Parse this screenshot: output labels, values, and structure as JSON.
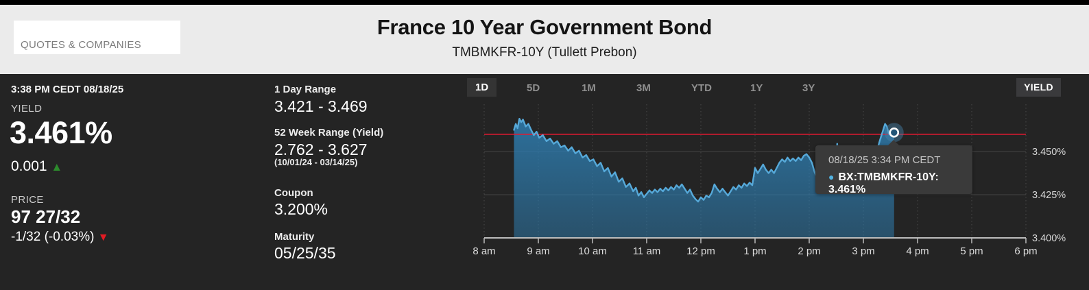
{
  "top_nav": {
    "menu_label": "QUOTES & COMPANIES"
  },
  "header": {
    "title": "France 10 Year Government Bond",
    "subtitle": "TMBMKFR-10Y  (Tullett Prebon)"
  },
  "quote": {
    "timestamp": "3:38 PM CEDT 08/18/25",
    "yield_label": "YIELD",
    "yield_value": "3.461%",
    "yield_change": "0.001",
    "up_arrow_icon": "▲",
    "price_label": "PRICE",
    "price_value": "97 27/32",
    "price_change": "-1/32  (-0.03%)",
    "down_arrow_icon": "▼"
  },
  "stats": [
    {
      "label": "1 Day Range",
      "value": "3.421 - 3.469"
    },
    {
      "label": "52 Week Range (Yield)",
      "value": "2.762 - 3.627",
      "note": "(10/01/24 - 03/14/25)"
    },
    {
      "label": "Coupon",
      "value": "3.200%"
    },
    {
      "label": "Maturity",
      "value": "05/25/35"
    }
  ],
  "chart": {
    "range_tabs": [
      "1D",
      "5D",
      "1M",
      "3M",
      "YTD",
      "1Y",
      "3Y"
    ],
    "active_tab": "1D",
    "mode_button": "YIELD",
    "tooltip": {
      "line1": "08/18/25 3:34 PM CEDT",
      "line2": "BX:TMBMKFR-10Y: 3.461%",
      "bullet": "●"
    }
  },
  "chart_data": {
    "type": "area",
    "title": "France 10 Year Government Bond intraday yield (1D)",
    "series_name": "BX:TMBMKFR-10Y",
    "x_unit": "minutes_since_midnight",
    "xlim": [
      480,
      1080
    ],
    "ylim": [
      3.4,
      3.4774
    ],
    "grid": true,
    "x_ticks": [
      {
        "t": 480,
        "label": "8 am"
      },
      {
        "t": 540,
        "label": "9 am"
      },
      {
        "t": 600,
        "label": "10 am"
      },
      {
        "t": 660,
        "label": "11 am"
      },
      {
        "t": 720,
        "label": "12 pm"
      },
      {
        "t": 780,
        "label": "1 pm"
      },
      {
        "t": 840,
        "label": "2 pm"
      },
      {
        "t": 900,
        "label": "3 pm"
      },
      {
        "t": 960,
        "label": "4 pm"
      },
      {
        "t": 1020,
        "label": "5 pm"
      },
      {
        "t": 1080,
        "label": "6 pm"
      }
    ],
    "y_ticks": [
      {
        "v": 3.45,
        "label": "3.450%"
      },
      {
        "v": 3.425,
        "label": "3.425%"
      },
      {
        "v": 3.4,
        "label": "3.400%"
      }
    ],
    "previous_close": 3.46,
    "day_high": 3.469,
    "day_low": 3.421,
    "last_point": {
      "t": 934,
      "v": 3.461,
      "label": "08/18/25 3:34 PM CEDT"
    },
    "colors": {
      "line": "#56a9d9",
      "fill_top": "rgba(46,125,176,0.85)",
      "fill_bottom": "rgba(46,125,176,0.50)",
      "prev_close_line": "#e11931",
      "grid": "#454545",
      "axis": "#bdbdbd"
    },
    "series": [
      [
        513,
        3.4625
      ],
      [
        515,
        3.466
      ],
      [
        517,
        3.4635
      ],
      [
        519,
        3.469
      ],
      [
        521,
        3.467
      ],
      [
        523,
        3.4685
      ],
      [
        526,
        3.4645
      ],
      [
        529,
        3.466
      ],
      [
        532,
        3.4625
      ],
      [
        535,
        3.4595
      ],
      [
        538,
        3.4615
      ],
      [
        541,
        3.458
      ],
      [
        545,
        3.4595
      ],
      [
        549,
        3.456
      ],
      [
        553,
        3.4575
      ],
      [
        557,
        3.4545
      ],
      [
        561,
        3.456
      ],
      [
        565,
        3.4525
      ],
      [
        569,
        3.4535
      ],
      [
        573,
        3.4505
      ],
      [
        577,
        3.4525
      ],
      [
        581,
        3.449
      ],
      [
        585,
        3.4505
      ],
      [
        589,
        3.4465
      ],
      [
        593,
        3.448
      ],
      [
        597,
        3.4445
      ],
      [
        601,
        3.4455
      ],
      [
        605,
        3.4415
      ],
      [
        609,
        3.4435
      ],
      [
        613,
        3.4385
      ],
      [
        617,
        3.4405
      ],
      [
        621,
        3.4355
      ],
      [
        625,
        3.438
      ],
      [
        629,
        3.4325
      ],
      [
        633,
        3.4345
      ],
      [
        637,
        3.4295
      ],
      [
        641,
        3.4315
      ],
      [
        645,
        3.427
      ],
      [
        648,
        3.429
      ],
      [
        651,
        3.4245
      ],
      [
        654,
        3.4265
      ],
      [
        657,
        3.4235
      ],
      [
        660,
        3.4255
      ],
      [
        663,
        3.4275
      ],
      [
        666,
        3.426
      ],
      [
        669,
        3.428
      ],
      [
        672,
        3.4265
      ],
      [
        675,
        3.4285
      ],
      [
        678,
        3.427
      ],
      [
        681,
        3.429
      ],
      [
        684,
        3.4275
      ],
      [
        687,
        3.4295
      ],
      [
        690,
        3.428
      ],
      [
        693,
        3.4305
      ],
      [
        696,
        3.429
      ],
      [
        699,
        3.431
      ],
      [
        702,
        3.4285
      ],
      [
        705,
        3.426
      ],
      [
        708,
        3.428
      ],
      [
        711,
        3.4245
      ],
      [
        714,
        3.4225
      ],
      [
        717,
        3.421
      ],
      [
        720,
        3.4235
      ],
      [
        723,
        3.422
      ],
      [
        726,
        3.4245
      ],
      [
        729,
        3.4235
      ],
      [
        732,
        3.426
      ],
      [
        735,
        3.431
      ],
      [
        738,
        3.4285
      ],
      [
        741,
        3.4265
      ],
      [
        744,
        3.4285
      ],
      [
        747,
        3.4265
      ],
      [
        750,
        3.4245
      ],
      [
        753,
        3.427
      ],
      [
        756,
        3.4295
      ],
      [
        759,
        3.428
      ],
      [
        762,
        3.4305
      ],
      [
        765,
        3.429
      ],
      [
        768,
        3.4315
      ],
      [
        771,
        3.43
      ],
      [
        774,
        3.432
      ],
      [
        777,
        3.4305
      ],
      [
        780,
        3.4405
      ],
      [
        783,
        3.4375
      ],
      [
        786,
        3.44
      ],
      [
        789,
        3.4425
      ],
      [
        792,
        3.4395
      ],
      [
        795,
        3.4375
      ],
      [
        798,
        3.4395
      ],
      [
        801,
        3.4375
      ],
      [
        804,
        3.4405
      ],
      [
        807,
        3.4435
      ],
      [
        810,
        3.4455
      ],
      [
        813,
        3.444
      ],
      [
        816,
        3.4465
      ],
      [
        819,
        3.4445
      ],
      [
        822,
        3.446
      ],
      [
        825,
        3.4445
      ],
      [
        828,
        3.4465
      ],
      [
        831,
        3.445
      ],
      [
        834,
        3.4475
      ],
      [
        837,
        3.4485
      ],
      [
        840,
        3.4465
      ],
      [
        843,
        3.4435
      ],
      [
        846,
        3.438
      ],
      [
        849,
        3.4345
      ],
      [
        852,
        3.4335
      ],
      [
        855,
        3.435
      ],
      [
        858,
        3.4325
      ],
      [
        861,
        3.434
      ],
      [
        864,
        3.432
      ],
      [
        867,
        3.4335
      ],
      [
        869,
        3.437
      ],
      [
        871,
        3.4545
      ],
      [
        873,
        3.439
      ],
      [
        876,
        3.436
      ],
      [
        880,
        3.4375
      ],
      [
        884,
        3.436
      ],
      [
        888,
        3.438
      ],
      [
        892,
        3.4365
      ],
      [
        896,
        3.438
      ],
      [
        900,
        3.4395
      ],
      [
        904,
        3.441
      ],
      [
        908,
        3.4425
      ],
      [
        912,
        3.4475
      ],
      [
        915,
        3.4505
      ],
      [
        918,
        3.456
      ],
      [
        921,
        3.461
      ],
      [
        924,
        3.466
      ],
      [
        926,
        3.4645
      ],
      [
        928,
        3.4605
      ],
      [
        930,
        3.4595
      ],
      [
        932,
        3.4625
      ],
      [
        934,
        3.461
      ]
    ]
  }
}
